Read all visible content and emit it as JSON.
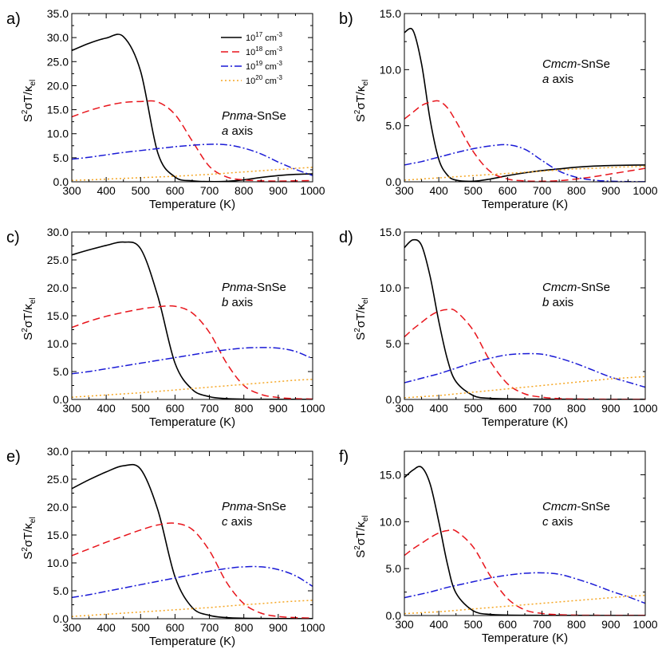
{
  "legend": [
    {
      "label": "10",
      "sup": "17",
      "unit": " cm",
      "unitsup": "-3",
      "color": "#000000",
      "dash": "none"
    },
    {
      "label": "10",
      "sup": "18",
      "unit": " cm",
      "unitsup": "-3",
      "color": "#e8141b",
      "dash": "9,5"
    },
    {
      "label": "10",
      "sup": "19",
      "unit": " cm",
      "unitsup": "-3",
      "color": "#1a1ad6",
      "dash": "9,3,2,3"
    },
    {
      "label": "10",
      "sup": "20",
      "unit": " cm",
      "unitsup": "-3",
      "color": "#f5a623",
      "dash": "2,3"
    }
  ],
  "chart_data": [
    {
      "type": "line",
      "panel_label": "a)",
      "phase_italic": "Pnma",
      "phase_rest": "-SnSe",
      "axis_italic": "a",
      "axis_rest": " axis",
      "xlabel": "Temperature (K)",
      "ylabel": "S2σT/κel",
      "xlim": [
        300,
        1000
      ],
      "ylim": [
        0,
        35
      ],
      "yticks": [
        "0.0",
        "5.0",
        "10.0",
        "15.0",
        "20.0",
        "25.0",
        "30.0",
        "35.0"
      ],
      "ytick_values": [
        0,
        5,
        10,
        15,
        20,
        25,
        30,
        35
      ],
      "xticks": [
        "300",
        "400",
        "500",
        "600",
        "700",
        "800",
        "900",
        "1000"
      ],
      "x": [
        300,
        350,
        400,
        450,
        500,
        550,
        600,
        650,
        700,
        750,
        800,
        850,
        900,
        950,
        1000
      ],
      "series": [
        {
          "name": "1e17",
          "values": [
            27.3,
            28.8,
            29.9,
            30.2,
            23.0,
            6.0,
            1.0,
            0.2,
            0.05,
            0.1,
            0.4,
            0.9,
            1.3,
            1.55,
            1.65
          ]
        },
        {
          "name": "1e18",
          "values": [
            13.5,
            14.8,
            15.8,
            16.5,
            16.7,
            16.6,
            14.0,
            8.5,
            3.2,
            1.0,
            0.4,
            0.2,
            0.15,
            0.2,
            0.25
          ]
        },
        {
          "name": "1e19",
          "values": [
            4.7,
            5.1,
            5.6,
            6.1,
            6.5,
            6.9,
            7.3,
            7.6,
            7.8,
            7.7,
            7.0,
            5.8,
            4.1,
            2.6,
            1.3
          ]
        },
        {
          "name": "1e20",
          "values": [
            0.3,
            0.4,
            0.55,
            0.7,
            0.85,
            1.0,
            1.15,
            1.35,
            1.55,
            1.8,
            2.05,
            2.3,
            2.55,
            2.8,
            3.0
          ]
        }
      ],
      "legend_visible": true
    },
    {
      "type": "line",
      "panel_label": "b)",
      "phase_italic": "Cmcm",
      "phase_rest": "-SnSe",
      "axis_italic": "a",
      "axis_rest": " axis",
      "xlabel": "Temperature (K)",
      "ylabel": "S2σT/κel",
      "xlim": [
        300,
        1000
      ],
      "ylim": [
        0,
        15
      ],
      "yticks": [
        "0.0",
        "5.0",
        "10.0",
        "15.0"
      ],
      "ytick_values": [
        0,
        5,
        10,
        15
      ],
      "xticks": [
        "300",
        "400",
        "500",
        "600",
        "700",
        "800",
        "900",
        "1000"
      ],
      "x": [
        300,
        325,
        350,
        375,
        400,
        425,
        450,
        500,
        550,
        600,
        650,
        700,
        750,
        800,
        850,
        900,
        950,
        1000
      ],
      "series": [
        {
          "name": "1e17",
          "values": [
            13.3,
            13.5,
            10.5,
            5.5,
            2.0,
            0.6,
            0.15,
            0.05,
            0.25,
            0.55,
            0.8,
            1.0,
            1.15,
            1.3,
            1.4,
            1.45,
            1.48,
            1.5
          ]
        },
        {
          "name": "1e18",
          "values": [
            5.6,
            6.2,
            6.8,
            7.1,
            7.2,
            6.6,
            5.4,
            2.7,
            0.9,
            0.25,
            0.08,
            0.05,
            0.1,
            0.25,
            0.45,
            0.7,
            0.95,
            1.2
          ]
        },
        {
          "name": "1e19",
          "values": [
            1.5,
            1.65,
            1.8,
            2.0,
            2.2,
            2.4,
            2.6,
            2.95,
            3.2,
            3.3,
            2.9,
            1.9,
            0.95,
            0.4,
            0.15,
            0.05,
            0.02,
            0.01
          ]
        },
        {
          "name": "1e20",
          "values": [
            0.15,
            0.2,
            0.25,
            0.3,
            0.35,
            0.4,
            0.45,
            0.55,
            0.65,
            0.75,
            0.85,
            0.95,
            1.05,
            1.15,
            1.2,
            1.28,
            1.33,
            1.38
          ]
        }
      ],
      "legend_visible": false
    },
    {
      "type": "line",
      "panel_label": "c)",
      "phase_italic": "Pnma",
      "phase_rest": "-SnSe",
      "axis_italic": "b",
      "axis_rest": " axis",
      "xlabel": "Temperature (K)",
      "ylabel": "S2σT/κel",
      "xlim": [
        300,
        1000
      ],
      "ylim": [
        0,
        30
      ],
      "yticks": [
        "0.0",
        "5.0",
        "10.0",
        "15.0",
        "20.0",
        "25.0",
        "30.0"
      ],
      "ytick_values": [
        0,
        5,
        10,
        15,
        20,
        25,
        30
      ],
      "xticks": [
        "300",
        "400",
        "500",
        "600",
        "700",
        "800",
        "900",
        "1000"
      ],
      "x": [
        300,
        350,
        400,
        450,
        500,
        550,
        600,
        650,
        700,
        750,
        800,
        850,
        900,
        950,
        1000
      ],
      "series": [
        {
          "name": "1e17",
          "values": [
            25.9,
            26.8,
            27.6,
            28.2,
            27.0,
            18.5,
            6.5,
            1.8,
            0.5,
            0.15,
            0.05,
            0.03,
            0.02,
            0.02,
            0.02
          ]
        },
        {
          "name": "1e18",
          "values": [
            12.9,
            14.0,
            14.9,
            15.6,
            16.2,
            16.6,
            16.7,
            15.5,
            12.0,
            6.5,
            2.5,
            0.9,
            0.35,
            0.15,
            0.08
          ]
        },
        {
          "name": "1e19",
          "values": [
            4.6,
            5.0,
            5.5,
            6.0,
            6.5,
            7.0,
            7.5,
            8.0,
            8.5,
            8.9,
            9.2,
            9.3,
            9.2,
            8.6,
            7.3
          ]
        },
        {
          "name": "1e20",
          "values": [
            0.4,
            0.6,
            0.8,
            1.0,
            1.2,
            1.45,
            1.7,
            1.95,
            2.2,
            2.45,
            2.7,
            2.95,
            3.2,
            3.45,
            3.6
          ]
        }
      ],
      "legend_visible": false
    },
    {
      "type": "line",
      "panel_label": "d)",
      "phase_italic": "Cmcm",
      "phase_rest": "-SnSe",
      "axis_italic": "b",
      "axis_rest": " axis",
      "xlabel": "Temperature (K)",
      "ylabel": "S2σT/κel",
      "xlim": [
        300,
        1000
      ],
      "ylim": [
        0,
        15
      ],
      "yticks": [
        "0.0",
        "5.0",
        "10.0",
        "15.0"
      ],
      "ytick_values": [
        0,
        5,
        10,
        15
      ],
      "xticks": [
        "300",
        "400",
        "500",
        "600",
        "700",
        "800",
        "900",
        "1000"
      ],
      "x": [
        300,
        325,
        350,
        375,
        400,
        425,
        450,
        500,
        550,
        600,
        650,
        700,
        750,
        800,
        850,
        900,
        950,
        1000
      ],
      "series": [
        {
          "name": "1e17",
          "values": [
            13.6,
            14.3,
            13.8,
            11.0,
            7.0,
            3.6,
            1.6,
            0.35,
            0.1,
            0.05,
            0.03,
            0.02,
            0.02,
            0.02,
            0.01,
            0.01,
            0.01,
            0.01
          ]
        },
        {
          "name": "1e18",
          "values": [
            5.6,
            6.3,
            6.9,
            7.5,
            7.9,
            8.05,
            7.9,
            6.2,
            3.4,
            1.4,
            0.5,
            0.2,
            0.08,
            0.04,
            0.03,
            0.02,
            0.02,
            0.02
          ]
        },
        {
          "name": "1e19",
          "values": [
            1.5,
            1.7,
            1.9,
            2.1,
            2.3,
            2.55,
            2.8,
            3.3,
            3.7,
            4.0,
            4.1,
            4.05,
            3.7,
            3.2,
            2.6,
            2.0,
            1.55,
            1.1
          ]
        },
        {
          "name": "1e20",
          "values": [
            0.15,
            0.2,
            0.25,
            0.3,
            0.35,
            0.42,
            0.5,
            0.65,
            0.8,
            0.95,
            1.1,
            1.25,
            1.4,
            1.55,
            1.7,
            1.85,
            1.95,
            2.05
          ]
        }
      ],
      "legend_visible": false
    },
    {
      "type": "line",
      "panel_label": "e)",
      "phase_italic": "Pnma",
      "phase_rest": "-SnSe",
      "axis_italic": "c",
      "axis_rest": " axis",
      "xlabel": "Temperature (K)",
      "ylabel": "S2σT/κel",
      "xlim": [
        300,
        1000
      ],
      "ylim": [
        0,
        30
      ],
      "yticks": [
        "0.0",
        "5.0",
        "10.0",
        "15.0",
        "20.0",
        "25.0",
        "30.0"
      ],
      "ytick_values": [
        0,
        5,
        10,
        15,
        20,
        25,
        30
      ],
      "xticks": [
        "300",
        "400",
        "500",
        "600",
        "700",
        "800",
        "900",
        "1000"
      ],
      "x": [
        300,
        350,
        400,
        450,
        500,
        550,
        600,
        650,
        700,
        750,
        800,
        850,
        900,
        950,
        1000
      ],
      "series": [
        {
          "name": "1e17",
          "values": [
            23.3,
            24.9,
            26.3,
            27.4,
            26.8,
            19.5,
            7.5,
            2.0,
            0.6,
            0.2,
            0.08,
            0.05,
            0.03,
            0.02,
            0.02
          ]
        },
        {
          "name": "1e18",
          "values": [
            11.3,
            12.5,
            13.7,
            14.8,
            15.9,
            16.8,
            17.1,
            16.0,
            12.2,
            6.5,
            2.7,
            1.0,
            0.4,
            0.2,
            0.1
          ]
        },
        {
          "name": "1e19",
          "values": [
            3.8,
            4.3,
            4.9,
            5.5,
            6.1,
            6.7,
            7.3,
            7.9,
            8.5,
            9.0,
            9.3,
            9.3,
            8.8,
            7.7,
            5.8
          ]
        },
        {
          "name": "1e20",
          "values": [
            0.4,
            0.6,
            0.8,
            1.0,
            1.2,
            1.4,
            1.6,
            1.8,
            2.0,
            2.25,
            2.5,
            2.7,
            2.95,
            3.15,
            3.3
          ]
        }
      ],
      "legend_visible": false
    },
    {
      "type": "line",
      "panel_label": "f)",
      "phase_italic": "Cmcm",
      "phase_rest": "-SnSe",
      "axis_italic": "c",
      "axis_rest": " axis",
      "xlabel": "Temperature (K)",
      "ylabel": "S2σT/κel",
      "xlim": [
        300,
        1000
      ],
      "ylim": [
        0,
        17.5
      ],
      "yticks": [
        "0.0",
        "5.0",
        "10.0",
        "15.0"
      ],
      "ytick_values": [
        0,
        5,
        10,
        15
      ],
      "xticks": [
        "300",
        "400",
        "500",
        "600",
        "700",
        "800",
        "900",
        "1000"
      ],
      "x": [
        300,
        325,
        350,
        375,
        400,
        425,
        450,
        500,
        550,
        600,
        650,
        700,
        750,
        800,
        850,
        900,
        950,
        1000
      ],
      "series": [
        {
          "name": "1e17",
          "values": [
            14.7,
            15.5,
            15.8,
            14.0,
            10.0,
            5.5,
            2.4,
            0.5,
            0.12,
            0.05,
            0.03,
            0.02,
            0.02,
            0.02,
            0.01,
            0.01,
            0.01,
            0.01
          ]
        },
        {
          "name": "1e18",
          "values": [
            6.4,
            7.1,
            7.7,
            8.3,
            8.8,
            9.05,
            9.0,
            7.3,
            4.2,
            1.8,
            0.6,
            0.22,
            0.09,
            0.04,
            0.03,
            0.02,
            0.02,
            0.02
          ]
        },
        {
          "name": "1e19",
          "values": [
            1.9,
            2.1,
            2.3,
            2.5,
            2.75,
            3.0,
            3.2,
            3.6,
            4.0,
            4.3,
            4.5,
            4.55,
            4.4,
            3.9,
            3.3,
            2.6,
            2.0,
            1.3
          ]
        },
        {
          "name": "1e20",
          "values": [
            0.2,
            0.25,
            0.3,
            0.35,
            0.4,
            0.47,
            0.55,
            0.7,
            0.85,
            1.0,
            1.15,
            1.3,
            1.45,
            1.6,
            1.75,
            1.9,
            2.05,
            2.15
          ]
        }
      ],
      "legend_visible": false
    }
  ]
}
